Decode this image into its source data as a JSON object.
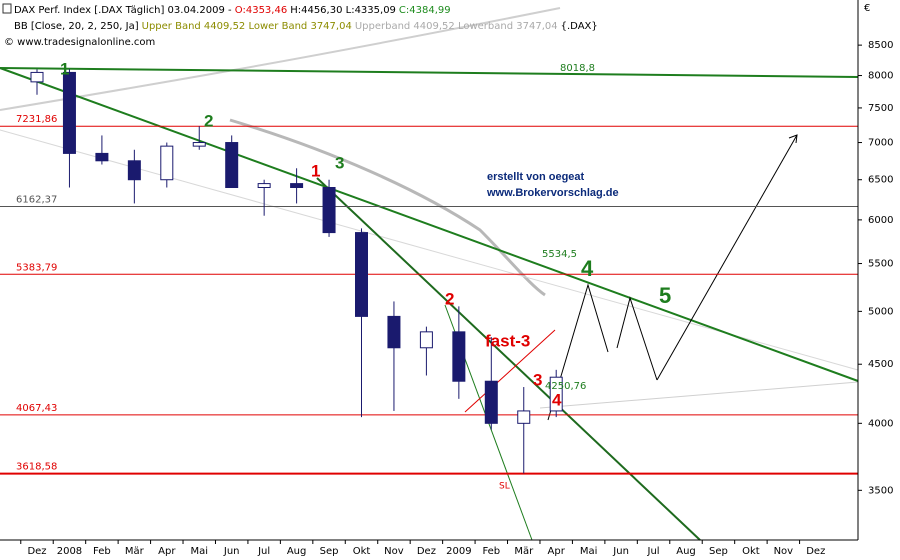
{
  "chart_data": {
    "type": "candlestick",
    "header": {
      "name": "DAX Perf. Index [.DAX  Täglich] 03.04.2009 - ",
      "open": "O:4353,46",
      "high_low": "H:4456,30 L:4335,09",
      "close": "C:4384,99",
      "bb": "BB [Close, 20, 2, 250, Ja]",
      "bands": "Upper Band 4409,52 Lower Band 3747,04",
      "bands2": "Upperband 4409,52 Lowerband 3747,04",
      "symbol": "{.DAX}",
      "source": "© www.tradesignalonline.com"
    },
    "currency": "€",
    "categories": [
      "Dez",
      "2008",
      "Feb",
      "Mär",
      "Apr",
      "Mai",
      "Jun",
      "Jul",
      "Aug",
      "Sep",
      "Okt",
      "Nov",
      "Dez",
      "2009",
      "Feb",
      "Mär",
      "Apr",
      "Mai",
      "Jun",
      "Jul",
      "Aug",
      "Sep",
      "Okt",
      "Nov",
      "Dez"
    ],
    "ohlc": {
      "open": [
        7900,
        8050,
        6850,
        6750,
        6500,
        6950,
        7000,
        6400,
        6450,
        6400,
        5850,
        4950,
        4650,
        4800,
        4350,
        4000,
        4100,
        null,
        null,
        null,
        null,
        null,
        null,
        null,
        null
      ],
      "high": [
        8100,
        8100,
        7100,
        6900,
        7000,
        7230,
        7100,
        6500,
        6650,
        6500,
        5900,
        5100,
        4850,
        5050,
        4750,
        4300,
        4450,
        null,
        null,
        null,
        null,
        null,
        null,
        null,
        null
      ],
      "low": [
        7700,
        6400,
        6700,
        6200,
        6400,
        6900,
        6400,
        6050,
        6200,
        5800,
        4050,
        4100,
        4400,
        4200,
        3950,
        3620,
        4050,
        null,
        null,
        null,
        null,
        null,
        null,
        null,
        null
      ],
      "close": [
        8050,
        6850,
        6750,
        6500,
        6950,
        7000,
        6400,
        6450,
        6400,
        5850,
        4950,
        4650,
        4800,
        4350,
        4000,
        4100,
        4385,
        null,
        null,
        null,
        null,
        null,
        null,
        null,
        null
      ]
    },
    "color": "#1a1a6e",
    "log_scale": true,
    "ylim": [
      3170,
      9300
    ],
    "yticks": [
      3500,
      4000,
      4500,
      5000,
      5500,
      6000,
      6500,
      7000,
      7500,
      8000,
      8500
    ],
    "levels": [
      {
        "value": 7231.86,
        "label": "7231,86",
        "color": "#e00000"
      },
      {
        "value": 6162.37,
        "label": "6162,37",
        "color": "#555555"
      },
      {
        "value": 5383.79,
        "label": "5383,79",
        "color": "#e00000"
      },
      {
        "value": 4067.43,
        "label": "4067,43",
        "color": "#e00000"
      },
      {
        "value": 3618.58,
        "label": "3618,58",
        "color": "#e00000"
      }
    ],
    "annotations": {
      "line_values": [
        "8018,8",
        "5534,5",
        "4250,76"
      ],
      "waves": [
        "1",
        "2",
        "1",
        "3",
        "2",
        "fast-3",
        "3",
        "4",
        "4",
        "5",
        "SL"
      ],
      "credit": [
        "erstellt von oegeat",
        "www.Brokervorschlag.de"
      ]
    }
  }
}
